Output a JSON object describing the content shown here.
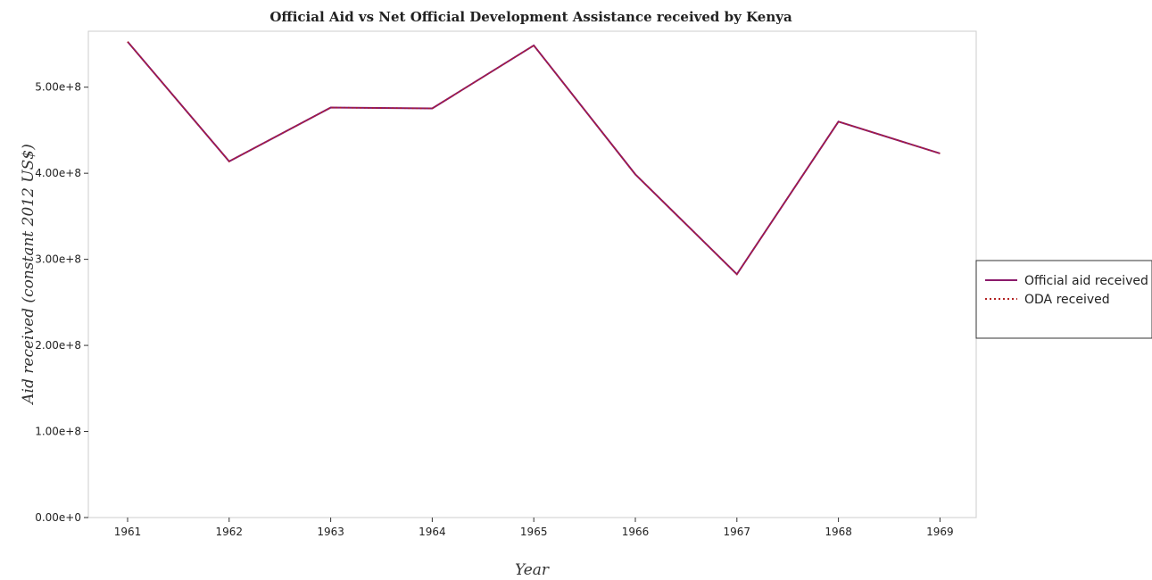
{
  "chart_data": {
    "type": "line",
    "title": "Official Aid vs Net Official Development Assistance received by Kenya",
    "xlabel": "Year",
    "ylabel": "Aid received (constant 2012 US$)",
    "categories": [
      "1961",
      "1962",
      "1963",
      "1964",
      "1965",
      "1966",
      "1967",
      "1968",
      "1969"
    ],
    "y_ticks": [
      "0.00e+0",
      "1.00e+8",
      "2.00e+8",
      "3.00e+8",
      "4.00e+8",
      "5.00e+8"
    ],
    "ylim": [
      0,
      565000000
    ],
    "grid": false,
    "legend_position": "right",
    "series": [
      {
        "name": "Official aid received",
        "style": "solid",
        "color": "#8b1a6b",
        "values": [
          552800000,
          413800000,
          476300000,
          475300000,
          548500000,
          398700000,
          282700000,
          460000000,
          423000000
        ]
      },
      {
        "name": "ODA received",
        "style": "dotted",
        "color": "#b22222",
        "values": [
          552800000,
          413800000,
          476300000,
          475300000,
          548500000,
          398700000,
          282700000,
          460000000,
          423000000
        ]
      }
    ]
  }
}
